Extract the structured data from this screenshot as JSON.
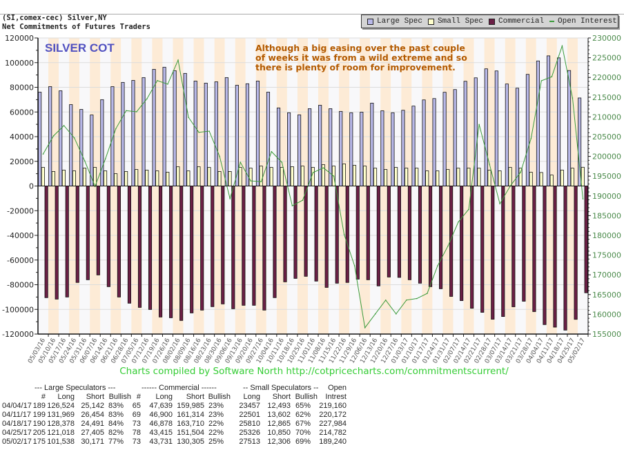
{
  "header": {
    "line1": "(SI,comex-cec) Silver,NY",
    "line2": "Net Commitments of Futures Traders"
  },
  "legend": [
    {
      "label": "Large Spec",
      "color": "#b8b8e8",
      "kind": "box"
    },
    {
      "label": "Small Spec",
      "color": "#ffffcc",
      "kind": "box"
    },
    {
      "label": "Commercial",
      "color": "#6b1f45",
      "kind": "box"
    },
    {
      "label": "Open Interest",
      "color": "#3a9a3a",
      "kind": "line"
    }
  ],
  "credit": "Charts compiled by Software North  http://cotpricecharts.com/commitmentscurrent/",
  "chart_data": {
    "type": "bar",
    "title": "SILVER COT",
    "annotation": [
      "Although a big easing over the past couple",
      "of weeks it was from a wild extreme and so",
      "there is plenty of room for improvement."
    ],
    "ylim": [
      -120000,
      120000
    ],
    "y_ticks": [
      120000,
      100000,
      80000,
      60000,
      40000,
      20000,
      0,
      -20000,
      -40000,
      -60000,
      -80000,
      -100000,
      -120000
    ],
    "y2lim": [
      155000,
      230000
    ],
    "y2_ticks": [
      230000,
      225000,
      220000,
      215000,
      210000,
      205000,
      200000,
      195000,
      190000,
      185000,
      180000,
      175000,
      170000,
      165000,
      160000,
      155000
    ],
    "grid": true,
    "legend_position": "top-right",
    "colors": {
      "large": "#b8b8e8",
      "small": "#ffffcc",
      "commercial": "#6b1f45",
      "open_interest": "#3a9a3a",
      "stripe": "#fdebd6",
      "stripe_alt": "#f8f8fa",
      "annotation": "#b35a00",
      "title": "#5050c0",
      "right_axis": "#4a8a4a"
    },
    "categories": [
      "05/03/16",
      "05/10/16",
      "05/17/16",
      "05/24/16",
      "05/31/16",
      "06/07/16",
      "06/14/16",
      "06/21/16",
      "06/28/16",
      "07/05/16",
      "07/12/16",
      "07/19/16",
      "07/26/16",
      "08/02/16",
      "08/09/16",
      "08/16/16",
      "08/23/16",
      "08/30/16",
      "09/06/16",
      "09/13/16",
      "09/20/16",
      "09/27/16",
      "10/04/16",
      "10/11/16",
      "10/18/16",
      "10/25/16",
      "11/01/16",
      "11/08/16",
      "11/15/16",
      "11/22/16",
      "11/29/16",
      "12/06/16",
      "12/13/16",
      "12/20/16",
      "12/27/16",
      "01/03/17",
      "01/10/17",
      "01/17/17",
      "01/24/17",
      "01/31/17",
      "02/07/17",
      "02/14/17",
      "02/21/17",
      "02/28/17",
      "03/07/17",
      "03/14/17",
      "03/21/17",
      "03/28/17",
      "04/04/17",
      "04/11/17",
      "04/18/17",
      "04/25/17",
      "05/02/17"
    ],
    "series": [
      {
        "name": "Large Spec",
        "axis": "left",
        "values": [
          76100,
          80600,
          77200,
          66000,
          62100,
          57600,
          70000,
          80600,
          84000,
          85600,
          87900,
          94600,
          96300,
          93500,
          91300,
          85100,
          83400,
          84500,
          87900,
          81700,
          82900,
          85100,
          76100,
          63300,
          59400,
          57700,
          62700,
          65500,
          62700,
          60500,
          59400,
          59900,
          67200,
          61000,
          59400,
          61400,
          64800,
          69800,
          70900,
          76000,
          78200,
          84900,
          87700,
          95000,
          93300,
          82700,
          79300,
          90500,
          101382,
          105515,
          103887,
          93613,
          71367
        ]
      },
      {
        "name": "Small Spec",
        "axis": "left",
        "values": [
          15100,
          11800,
          12900,
          12300,
          14500,
          15100,
          12300,
          10000,
          11800,
          13400,
          12900,
          12300,
          11200,
          15600,
          12300,
          15600,
          15100,
          11800,
          11800,
          15100,
          14500,
          16200,
          15100,
          15100,
          15700,
          16200,
          15100,
          17300,
          16200,
          17900,
          16800,
          16200,
          14500,
          13400,
          15100,
          14500,
          14500,
          12300,
          12300,
          13400,
          14500,
          14500,
          14500,
          12900,
          12300,
          15100,
          14500,
          11200,
          10964,
          8899,
          12945,
          14476,
          15207
        ]
      },
      {
        "name": "Commercial",
        "axis": "left",
        "values": [
          -90500,
          -91700,
          -90000,
          -78200,
          -76000,
          -72100,
          -81600,
          -90000,
          -95000,
          -98400,
          -100100,
          -106200,
          -106800,
          -109000,
          -102900,
          -100600,
          -97800,
          -95600,
          -99500,
          -96700,
          -96700,
          -100600,
          -90500,
          -77700,
          -74900,
          -73200,
          -77100,
          -82200,
          -78800,
          -78200,
          -75500,
          -76000,
          -81000,
          -73800,
          -74100,
          -76000,
          -78800,
          -81600,
          -83300,
          -89500,
          -92900,
          -99100,
          -102400,
          -108000,
          -105800,
          -97900,
          -93400,
          -101800,
          -112346,
          -114414,
          -116832,
          -108089,
          -86574
        ]
      },
      {
        "name": "Open Interest",
        "axis": "right",
        "type": "line",
        "values": [
          200600,
          205200,
          207800,
          204700,
          198900,
          192400,
          199400,
          207000,
          211600,
          211300,
          214600,
          219200,
          218300,
          224400,
          209900,
          206100,
          206400,
          200000,
          189300,
          198500,
          193800,
          193600,
          201200,
          198500,
          187500,
          188900,
          195900,
          197100,
          195000,
          180200,
          172300,
          156600,
          160100,
          163600,
          160100,
          163600,
          164000,
          165300,
          172300,
          177300,
          183400,
          186600,
          208100,
          198000,
          188000,
          192500,
          196000,
          204500,
          219160,
          220172,
          227984,
          214782,
          189240
        ]
      }
    ]
  },
  "table": {
    "group_headers": [
      "--- Large Speculators ---",
      "------ Commercial ------",
      "-- Small Speculators --",
      "Open"
    ],
    "columns": [
      "#",
      "Long",
      "Short",
      "Bullish",
      "#",
      "Long",
      "Short",
      "Bullish",
      "Long",
      "Short",
      "Bullish",
      "Intrest"
    ],
    "rows": [
      [
        "04/04/17",
        "189",
        "126,524",
        "25,142",
        "83%",
        "65",
        "47,639",
        "159,985",
        "23%",
        "23457",
        "12,493",
        "65%",
        "219,160"
      ],
      [
        "04/11/17",
        "199",
        "131,969",
        "26,454",
        "83%",
        "69",
        "46,900",
        "161,314",
        "23%",
        "22501",
        "13,602",
        "62%",
        "220,172"
      ],
      [
        "04/18/17",
        "190",
        "128,378",
        "24,491",
        "84%",
        "73",
        "46,878",
        "163,710",
        "22%",
        "25810",
        "12,865",
        "67%",
        "227,984"
      ],
      [
        "04/25/17",
        "205",
        "121,018",
        "27,405",
        "82%",
        "78",
        "43,415",
        "151,504",
        "22%",
        "25326",
        "10,850",
        "70%",
        "214,782"
      ],
      [
        "05/02/17",
        "175",
        "101,538",
        "30,171",
        "77%",
        "73",
        "43,731",
        "130,305",
        "25%",
        "27513",
        "12,306",
        "69%",
        "189,240"
      ]
    ]
  }
}
